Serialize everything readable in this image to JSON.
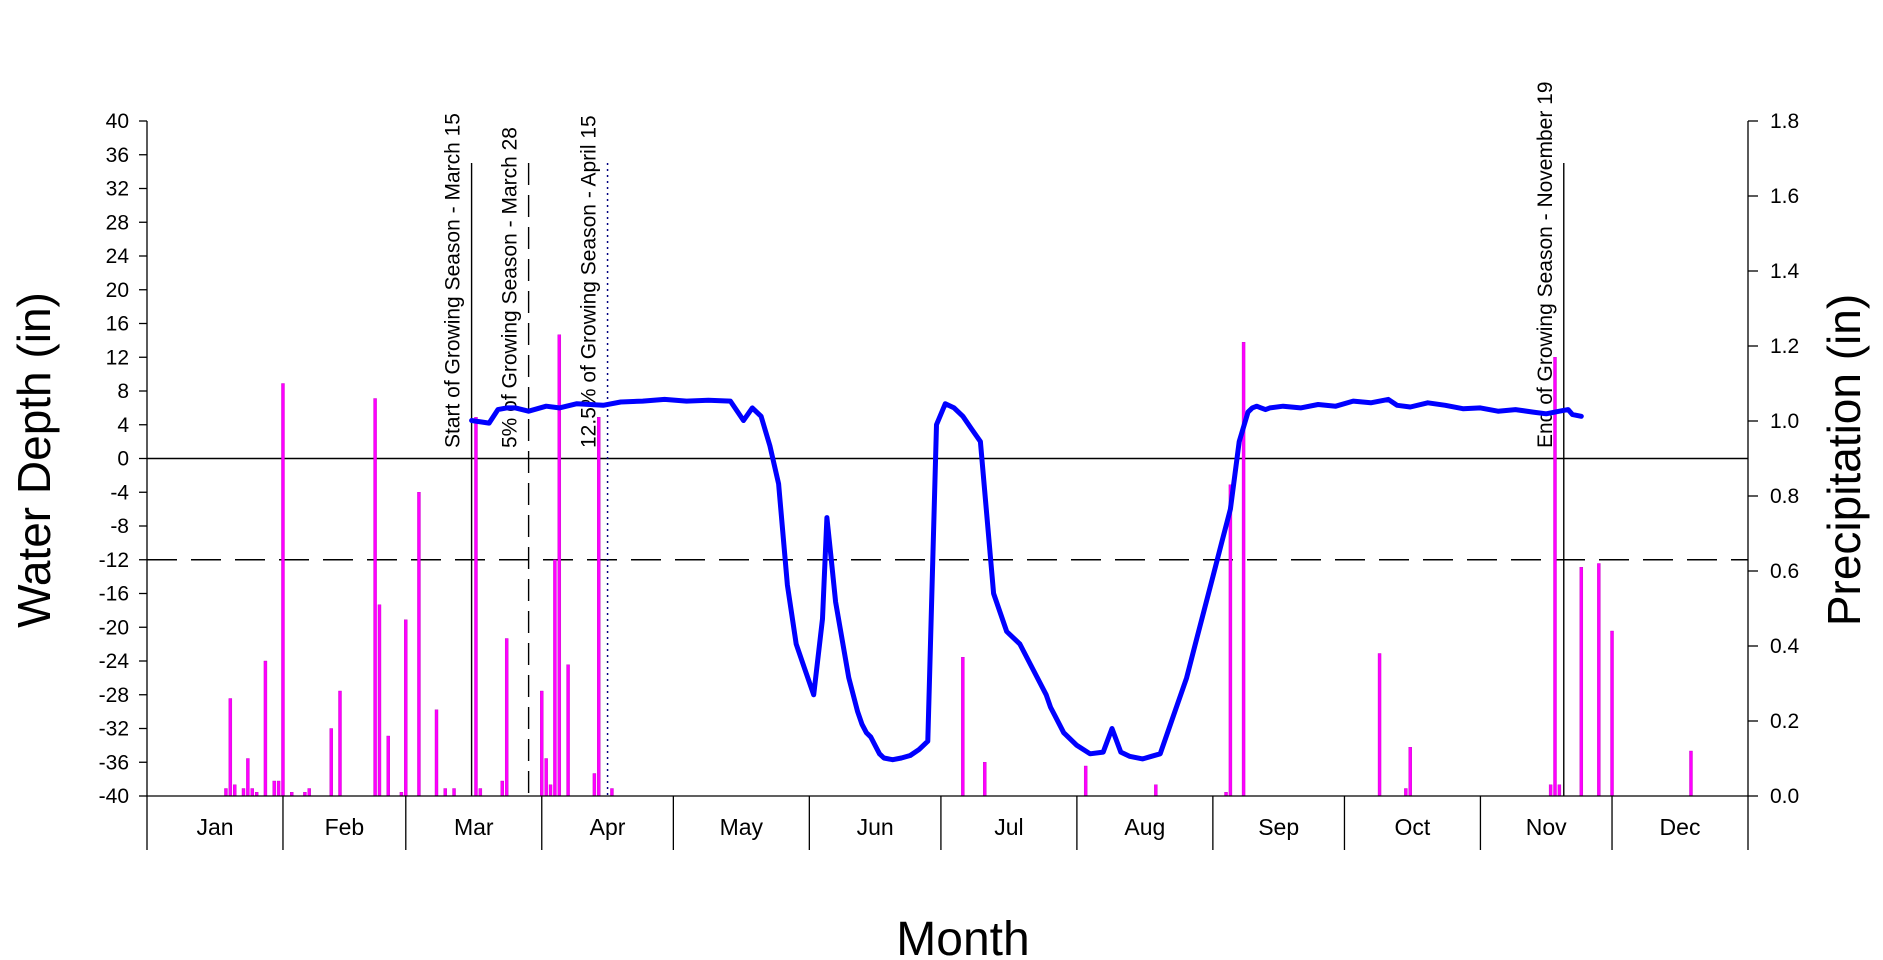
{
  "chart_data": {
    "type": "line",
    "xlabel": "Month",
    "ylabel_left": "Water Depth (in)",
    "ylabel_right": "Precipitation (in)",
    "left_ylim": [
      -40,
      40
    ],
    "left_ytick_labels": [
      "-40",
      "-36",
      "-32",
      "-28",
      "-24",
      "-20",
      "-16",
      "-12",
      "-8",
      "-4",
      "0",
      "4",
      "8",
      "12",
      "16",
      "20",
      "24",
      "28",
      "32",
      "36",
      "40"
    ],
    "right_ylim": [
      0,
      1.8
    ],
    "right_ytick_labels": [
      "0.0",
      "0.2",
      "0.4",
      "0.6",
      "0.8",
      "1.0",
      "1.2",
      "1.4",
      "1.6",
      "1.8"
    ],
    "months": [
      "Jan",
      "Feb",
      "Mar",
      "Apr",
      "May",
      "Jun",
      "Jul",
      "Aug",
      "Sep",
      "Oct",
      "Nov",
      "Dec"
    ],
    "reference_lines": [
      {
        "y": 0,
        "style": "solid"
      },
      {
        "y": -12,
        "style": "dashed"
      }
    ],
    "markers": [
      {
        "day": 74,
        "label": "Start of Growing Season - March 15",
        "style": "solid"
      },
      {
        "day": 87,
        "label": "5% of Growing Season - March 28",
        "style": "dashed"
      },
      {
        "day": 105,
        "label": "12.5% of Growing Season - April 15",
        "style": "dotted"
      },
      {
        "day": 323,
        "label": "End of Growing Season - November 19",
        "style": "solid"
      }
    ],
    "series": [
      {
        "kind": "water_depth_line",
        "color": "#0000ff",
        "x": [
          74,
          78,
          80,
          82,
          84,
          87,
          91,
          94,
          98,
          104,
          108,
          113,
          118,
          123,
          128,
          133,
          136,
          138,
          140,
          142,
          144,
          146,
          148,
          150,
          152,
          154,
          155,
          156,
          157,
          158,
          160,
          162,
          163,
          164,
          165,
          166,
          167,
          168,
          170,
          172,
          174,
          176,
          178,
          180,
          182,
          184,
          186,
          188,
          190,
          193,
          196,
          199,
          202,
          205,
          206,
          207,
          209,
          212,
          215,
          218,
          220,
          222,
          224,
          227,
          229,
          231,
          233,
          235,
          237,
          239,
          241,
          243,
          245,
          247,
          248,
          249,
          251,
          252,
          253,
          254,
          255,
          256,
          259,
          263,
          267,
          271,
          275,
          279,
          283,
          285,
          288,
          292,
          296,
          300,
          304,
          308,
          312,
          316,
          319,
          322,
          324,
          325,
          327
        ],
        "y": [
          4.5,
          4.2,
          5.8,
          6.0,
          6.0,
          5.6,
          6.2,
          6.0,
          6.5,
          6.3,
          6.7,
          6.8,
          7.0,
          6.8,
          6.9,
          6.8,
          4.5,
          6.0,
          5.0,
          1.5,
          -3.0,
          -15.0,
          -22.0,
          -25.0,
          -28.0,
          -19.0,
          -7.0,
          -12.0,
          -17.0,
          -20.0,
          -26.0,
          -30.0,
          -31.5,
          -32.5,
          -33.0,
          -34.0,
          -35.0,
          -35.5,
          -35.7,
          -35.5,
          -35.2,
          -34.5,
          -33.5,
          4.0,
          6.5,
          6.0,
          5.0,
          3.5,
          2.0,
          -16.0,
          -20.5,
          -22.0,
          -25.0,
          -28.0,
          -29.5,
          -30.5,
          -32.5,
          -34.0,
          -35.0,
          -34.8,
          -32.0,
          -34.8,
          -35.3,
          -35.6,
          -35.3,
          -35.0,
          -32.0,
          -29.0,
          -26.0,
          -22.0,
          -18.0,
          -14.0,
          -10.0,
          -6.0,
          -2.0,
          2.0,
          5.5,
          6.0,
          6.2,
          6.0,
          5.8,
          6.0,
          6.2,
          6.0,
          6.4,
          6.2,
          6.8,
          6.6,
          7.0,
          6.3,
          6.1,
          6.6,
          6.3,
          5.9,
          6.0,
          5.6,
          5.8,
          5.5,
          5.3,
          5.6,
          5.8,
          5.2,
          5.0
        ]
      },
      {
        "kind": "precipitation_bars",
        "color": "#ff00ff",
        "days": [
          18,
          19,
          20,
          22,
          23,
          24,
          25,
          27,
          29,
          30,
          31,
          33,
          36,
          37,
          42,
          44,
          52,
          53,
          55,
          58,
          59,
          62,
          66,
          68,
          70,
          75,
          76,
          81,
          82,
          90,
          91,
          92,
          93,
          94,
          96,
          102,
          103,
          106,
          186,
          191,
          214,
          230,
          246,
          247,
          250,
          281,
          287,
          288,
          320,
          321,
          322,
          327,
          331,
          334,
          352
        ],
        "values": [
          0.02,
          0.26,
          0.03,
          0.02,
          0.1,
          0.02,
          0.01,
          0.36,
          0.04,
          0.04,
          1.1,
          0.01,
          0.01,
          0.02,
          0.18,
          0.28,
          1.06,
          0.51,
          0.16,
          0.01,
          0.47,
          0.81,
          0.23,
          0.02,
          0.02,
          1.01,
          0.02,
          0.04,
          0.42,
          0.28,
          0.1,
          0.03,
          0.63,
          1.23,
          0.35,
          0.06,
          1.01,
          0.02,
          0.37,
          0.09,
          0.08,
          0.03,
          0.01,
          0.83,
          1.21,
          0.38,
          0.02,
          0.13,
          0.03,
          1.17,
          0.03,
          0.61,
          0.62,
          0.44,
          0.12
        ]
      }
    ]
  }
}
